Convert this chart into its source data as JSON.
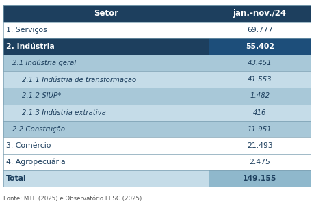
{
  "title_col1": "Setor",
  "title_col2": "jan.-nov./24",
  "rows": [
    {
      "label": "1. Serviços",
      "indent": 0,
      "value": "69.777",
      "style": "normal",
      "row_bg": "#ffffff",
      "value_bg": "#ffffff"
    },
    {
      "label": "2. Indústria",
      "indent": 0,
      "value": "55.402",
      "style": "bold",
      "row_bg": "#1d3f5e",
      "value_bg": "#1d4e7a"
    },
    {
      "label": "2.1 Indústria geral",
      "indent": 1,
      "value": "43.451",
      "style": "italic",
      "row_bg": "#a8c8d8",
      "value_bg": "#a8c8d8"
    },
    {
      "label": "2.1.1 Indústria de transformação",
      "indent": 2,
      "value": "41.553",
      "style": "italic",
      "row_bg": "#c5dce8",
      "value_bg": "#c5dce8"
    },
    {
      "label": "2.1.2 SIUP*",
      "indent": 2,
      "value": "1.482",
      "style": "italic",
      "row_bg": "#a8c8d8",
      "value_bg": "#a8c8d8"
    },
    {
      "label": "2.1.3 Indústria extrativa",
      "indent": 2,
      "value": "416",
      "style": "italic",
      "row_bg": "#c5dce8",
      "value_bg": "#c5dce8"
    },
    {
      "label": "2.2 Construção",
      "indent": 1,
      "value": "11.951",
      "style": "italic",
      "row_bg": "#a8c8d8",
      "value_bg": "#a8c8d8"
    },
    {
      "label": "3. Comércio",
      "indent": 0,
      "value": "21.493",
      "style": "normal",
      "row_bg": "#ffffff",
      "value_bg": "#ffffff"
    },
    {
      "label": "4. Agropecuária",
      "indent": 0,
      "value": "2.475",
      "style": "normal",
      "row_bg": "#ffffff",
      "value_bg": "#ffffff"
    },
    {
      "label": "Total",
      "indent": 0,
      "value": "149.155",
      "style": "bold",
      "row_bg": "#c5dce8",
      "value_bg": "#8fb8cc"
    }
  ],
  "header_bg": "#1d3f5e",
  "header_text_color": "#ffffff",
  "footer_text": "Fonte: MTE (2025) e Observatório FESC (2025)",
  "col_split": 0.665,
  "fig_width": 4.59,
  "fig_height": 3.07,
  "dpi": 100
}
